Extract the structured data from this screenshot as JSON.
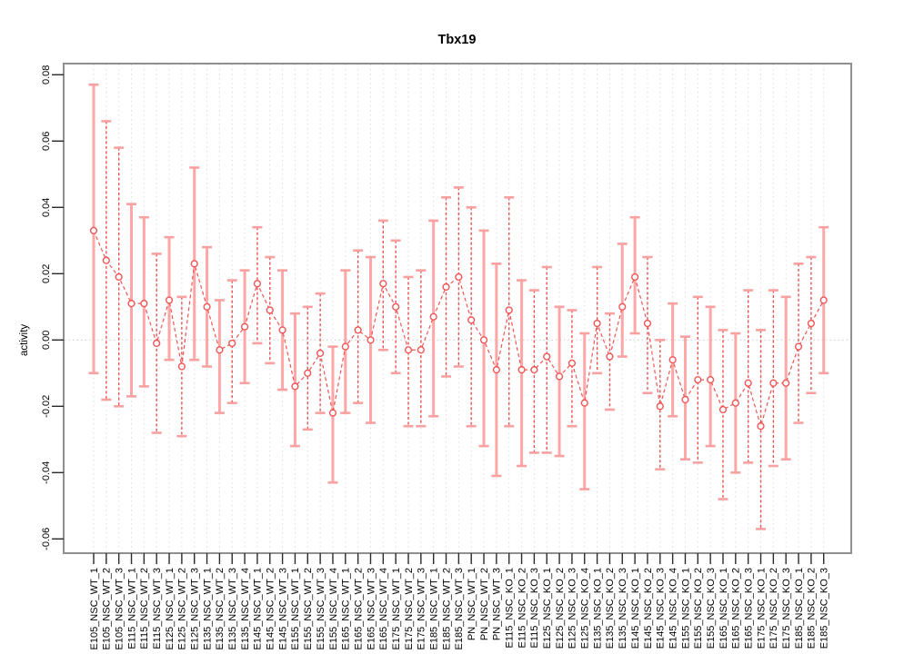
{
  "chart_data": {
    "type": "line",
    "title": "Tbx19",
    "xlabel": "",
    "ylabel": "activity",
    "ylim": [
      -0.065,
      0.083
    ],
    "yticks": [
      0.08,
      0.06,
      0.04,
      0.02,
      0.0,
      -0.02,
      -0.04,
      -0.06
    ],
    "grid": "dotted vertical gridline at every category; dotted horizontal line at y=0",
    "legend_position": "none",
    "point_marker": "open-circle",
    "error_bars": true,
    "categories": [
      "E105_NSC_WT_1",
      "E105_NSC_WT_2",
      "E105_NSC_WT_3",
      "E115_NSC_WT_1",
      "E115_NSC_WT_2",
      "E115_NSC_WT_3",
      "E125_NSC_WT_1",
      "E125_NSC_WT_2",
      "E125_NSC_WT_3",
      "E135_NSC_WT_1",
      "E135_NSC_WT_2",
      "E135_NSC_WT_3",
      "E135_NSC_WT_4",
      "E145_NSC_WT_1",
      "E145_NSC_WT_2",
      "E145_NSC_WT_3",
      "E155_NSC_WT_1",
      "E155_NSC_WT_2",
      "E155_NSC_WT_3",
      "E155_NSC_WT_4",
      "E165_NSC_WT_1",
      "E165_NSC_WT_2",
      "E165_NSC_WT_3",
      "E165_NSC_WT_4",
      "E175_NSC_WT_1",
      "E175_NSC_WT_2",
      "E175_NSC_WT_3",
      "E185_NSC_WT_1",
      "E185_NSC_WT_2",
      "E185_NSC_WT_3",
      "PN_NSC_WT_1",
      "PN_NSC_WT_2",
      "PN_NSC_WT_3",
      "E115_NSC_KO_1",
      "E115_NSC_KO_2",
      "E115_NSC_KO_3",
      "E125_NSC_KO_1",
      "E125_NSC_KO_2",
      "E125_NSC_KO_3",
      "E125_NSC_KO_4",
      "E135_NSC_KO_1",
      "E135_NSC_KO_2",
      "E135_NSC_KO_3",
      "E145_NSC_KO_1",
      "E145_NSC_KO_2",
      "E145_NSC_KO_3",
      "E145_NSC_KO_4",
      "E155_NSC_KO_1",
      "E155_NSC_KO_2",
      "E155_NSC_KO_3",
      "E165_NSC_KO_1",
      "E165_NSC_KO_2",
      "E165_NSC_KO_3",
      "E175_NSC_KO_1",
      "E175_NSC_KO_2",
      "E175_NSC_KO_3",
      "E185_NSC_KO_1",
      "E185_NSC_KO_2",
      "E185_NSC_KO_3"
    ],
    "series": [
      {
        "name": "activity",
        "values": [
          0.033,
          0.024,
          0.019,
          0.011,
          0.011,
          -0.001,
          0.012,
          -0.008,
          0.023,
          0.01,
          -0.003,
          -0.001,
          0.004,
          0.017,
          0.009,
          0.003,
          -0.014,
          -0.01,
          -0.004,
          -0.022,
          -0.002,
          0.003,
          0.0,
          0.017,
          0.01,
          -0.003,
          -0.003,
          0.007,
          0.016,
          0.019,
          0.006,
          0.0,
          -0.009,
          0.009,
          -0.009,
          -0.009,
          -0.005,
          -0.011,
          -0.007,
          -0.019,
          0.005,
          -0.005,
          0.01,
          0.019,
          0.005,
          -0.02,
          -0.006,
          -0.018,
          -0.012,
          -0.012,
          -0.021,
          -0.019,
          -0.013,
          -0.026,
          -0.013,
          -0.013,
          -0.002,
          0.005,
          0.012
        ],
        "ci_high": [
          0.077,
          0.066,
          0.058,
          0.041,
          0.037,
          0.026,
          0.031,
          0.013,
          0.052,
          0.028,
          0.012,
          0.018,
          0.021,
          0.034,
          0.025,
          0.021,
          0.008,
          0.01,
          0.014,
          -0.002,
          0.021,
          0.027,
          0.025,
          0.036,
          0.03,
          0.019,
          0.021,
          0.036,
          0.043,
          0.046,
          0.04,
          0.033,
          0.023,
          0.043,
          0.018,
          0.015,
          0.022,
          0.01,
          0.009,
          0.002,
          0.022,
          0.008,
          0.029,
          0.037,
          0.025,
          0.0,
          0.011,
          0.001,
          0.013,
          0.01,
          0.003,
          0.002,
          0.015,
          0.003,
          0.015,
          0.013,
          0.023,
          0.025,
          0.034
        ],
        "ci_low": [
          -0.01,
          -0.018,
          -0.02,
          -0.017,
          -0.014,
          -0.028,
          -0.006,
          -0.029,
          -0.006,
          -0.008,
          -0.022,
          -0.019,
          -0.013,
          -0.001,
          -0.007,
          -0.015,
          -0.032,
          -0.027,
          -0.022,
          -0.043,
          -0.022,
          -0.019,
          -0.025,
          -0.003,
          -0.01,
          -0.026,
          -0.026,
          -0.023,
          -0.011,
          -0.008,
          -0.026,
          -0.032,
          -0.041,
          -0.026,
          -0.038,
          -0.034,
          -0.034,
          -0.035,
          -0.026,
          -0.045,
          -0.01,
          -0.021,
          -0.005,
          0.002,
          -0.016,
          -0.039,
          -0.023,
          -0.036,
          -0.037,
          -0.032,
          -0.048,
          -0.04,
          -0.037,
          -0.057,
          -0.038,
          -0.036,
          -0.025,
          -0.016,
          -0.01
        ],
        "bar_styles": [
          "s",
          "d",
          "d",
          "s",
          "s",
          "d",
          "s",
          "d",
          "s",
          "s",
          "s",
          "d",
          "s",
          "d",
          "d",
          "s",
          "s",
          "d",
          "d",
          "s",
          "s",
          "d",
          "s",
          "d",
          "d",
          "d",
          "d",
          "s",
          "d",
          "d",
          "d",
          "s",
          "s",
          "d",
          "s",
          "d",
          "d",
          "s",
          "d",
          "s",
          "d",
          "d",
          "s",
          "s",
          "d",
          "d",
          "s",
          "s",
          "d",
          "s",
          "d",
          "s",
          "d",
          "d",
          "d",
          "s",
          "d",
          "d",
          "s"
        ]
      }
    ],
    "colors": {
      "point": "#f15555",
      "line": "#f15555",
      "bar_solid": "#ffa6a6",
      "bar_dashed": "#e85353",
      "cap": "#f9a0a0",
      "grid": "#dedede",
      "zero_line": "#c9c9c9",
      "box": "#8f8f8f",
      "tick": "#2a2a2a",
      "text": "#000000"
    }
  }
}
